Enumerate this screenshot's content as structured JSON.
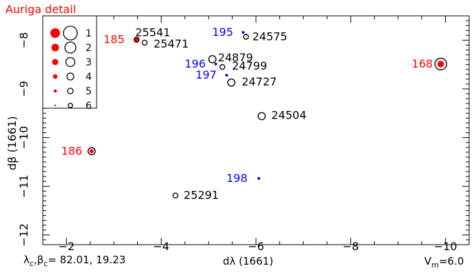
{
  "title": "Auriga detail",
  "footer": {
    "left_html_text": "λc,βc= 82.01, 19.23",
    "center": "dλ (1661)",
    "right": "Vm=6.0"
  },
  "chart_data": {
    "type": "scatter",
    "title": "Auriga detail",
    "xlabel": "dλ (1661)",
    "ylabel": "dβ (1661)",
    "xlim": [
      -1.5,
      -10.5
    ],
    "ylim": [
      -7.5,
      -12.2
    ],
    "x_ticks": [
      -2,
      -4,
      -6,
      -8,
      -10
    ],
    "y_ticks": [
      -8,
      -9,
      -10,
      -11,
      -12
    ],
    "legend": {
      "placement": "top-left",
      "entries": [
        "1",
        "2",
        "3",
        "4",
        "5",
        "6"
      ]
    },
    "series": [
      {
        "name": "black-open",
        "color": "#000000",
        "points": [
          {
            "x": -3.48,
            "y": -7.99,
            "label": "",
            "magnitude": 5
          },
          {
            "x": -3.65,
            "y": -8.05,
            "label": "25471",
            "magnitude": 5
          },
          {
            "x": -3.48,
            "y": -7.99,
            "label": "25541",
            "magnitude": 5
          },
          {
            "x": -5.79,
            "y": -7.93,
            "label": "24575",
            "magnitude": 5
          },
          {
            "x": -5.08,
            "y": -8.39,
            "label": "24879",
            "magnitude": 4
          },
          {
            "x": -5.29,
            "y": -8.55,
            "label": "24799",
            "magnitude": 5
          },
          {
            "x": -5.48,
            "y": -8.87,
            "label": "24727",
            "magnitude": 4
          },
          {
            "x": -6.12,
            "y": -9.56,
            "label": "24504",
            "magnitude": 4
          },
          {
            "x": -4.3,
            "y": -11.19,
            "label": "25291",
            "magnitude": 5
          },
          {
            "x": -9.9,
            "y": -8.49,
            "label": "",
            "magnitude": 1
          },
          {
            "x": -2.53,
            "y": -10.28,
            "label": "",
            "magnitude": 4
          }
        ]
      },
      {
        "name": "red-filled",
        "color": "#ff0000",
        "points": [
          {
            "x": -3.48,
            "y": -7.99,
            "label": "185",
            "magnitude": 5
          },
          {
            "x": -9.9,
            "y": -8.49,
            "label": "168",
            "magnitude": 3
          },
          {
            "x": -2.53,
            "y": -10.28,
            "label": "186",
            "magnitude": 5
          }
        ]
      },
      {
        "name": "blue-filled",
        "color": "#0000ff",
        "points": [
          {
            "x": -5.73,
            "y": -7.84,
            "label": "195",
            "magnitude": 6
          },
          {
            "x": -5.15,
            "y": -8.49,
            "label": "196",
            "magnitude": 6
          },
          {
            "x": -5.38,
            "y": -8.72,
            "label": "197",
            "magnitude": 6
          },
          {
            "x": -6.06,
            "y": -10.84,
            "label": "198",
            "magnitude": 6
          }
        ]
      }
    ]
  }
}
